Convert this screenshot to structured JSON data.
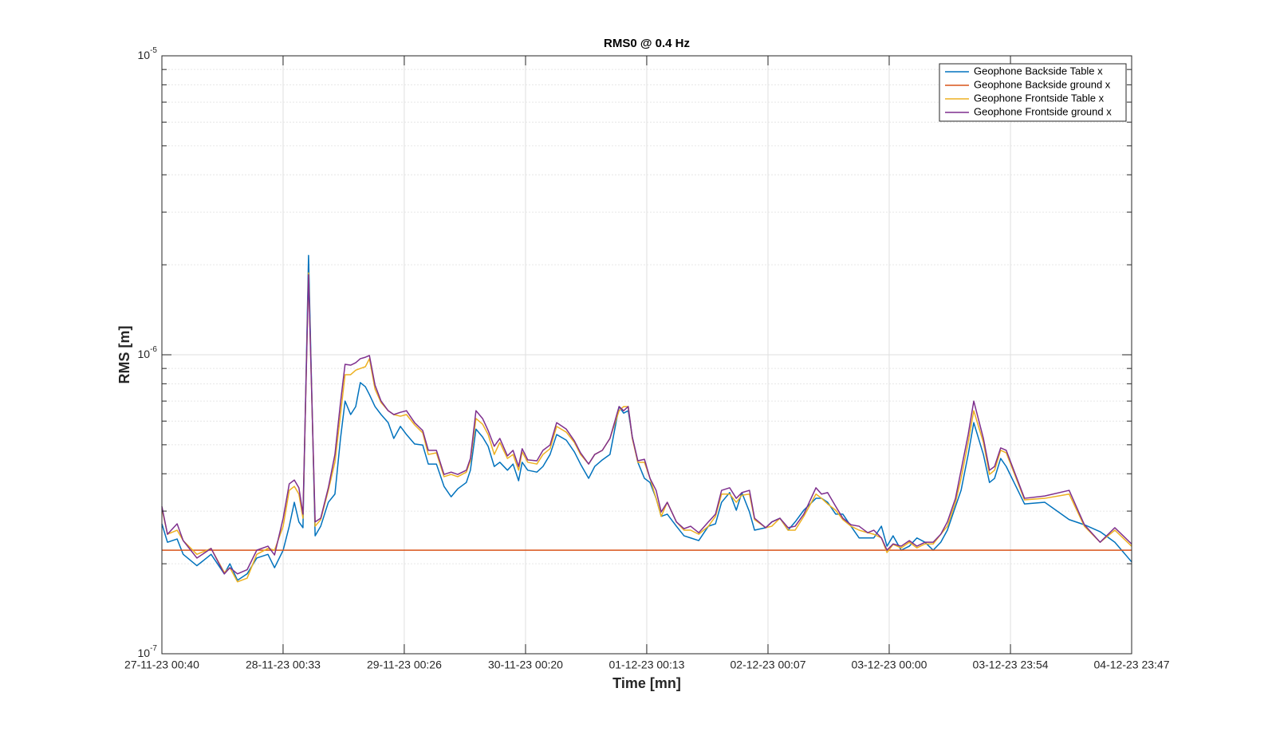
{
  "chart_data": {
    "type": "line",
    "title": "RMS0 @ 0.4 Hz",
    "x_label": "Time [mn]",
    "y_label": "RMS [m]",
    "log_y": true,
    "grid": true,
    "minor_grid": true,
    "legend": "top-right",
    "xlim": [
      0,
      191.117
    ],
    "xticks": [
      {
        "value": 0,
        "label": "27-11-23 00:40"
      },
      {
        "value": 23.883,
        "label": "28-11-23 00:33"
      },
      {
        "value": 47.767,
        "label": "29-11-23 00:26"
      },
      {
        "value": 71.667,
        "label": "30-11-23 00:20"
      },
      {
        "value": 95.55,
        "label": "01-12-23 00:13"
      },
      {
        "value": 119.45,
        "label": "02-12-23 00:07"
      },
      {
        "value": 143.333,
        "label": "03-12-23 00:00"
      },
      {
        "value": 167.233,
        "label": "03-12-23 23:54"
      },
      {
        "value": 191.117,
        "label": "04-12-23 23:47"
      }
    ],
    "ylim": [
      1e-07,
      1e-05
    ],
    "yticks": [
      {
        "value": 1e-07,
        "label": "10^-7"
      },
      {
        "value": 1e-06,
        "label": "10^-6"
      },
      {
        "value": 1e-05,
        "label": "10^-5"
      }
    ],
    "x": [
      0,
      1.1,
      3.0,
      4.2,
      6.9,
      9.7,
      12.3,
      13.4,
      14.9,
      16.8,
      18.7,
      20.9,
      22.2,
      23.9,
      25.1,
      26.1,
      27.0,
      27.8,
      28.9,
      30.2,
      31.3,
      32.8,
      34.1,
      35.2,
      36.1,
      37.2,
      38.2,
      39.1,
      40.1,
      40.9,
      42.0,
      43.2,
      44.6,
      45.7,
      47.0,
      48.2,
      49.8,
      51.4,
      52.5,
      54.1,
      55.6,
      57.0,
      58.3,
      60.0,
      60.8,
      61.9,
      63.2,
      64.3,
      65.5,
      66.6,
      68.1,
      69.2,
      70.3,
      71.0,
      72.1,
      73.9,
      75.1,
      76.5,
      77.8,
      79.7,
      81.3,
      82.5,
      84.1,
      85.3,
      86.8,
      88.3,
      90.1,
      91.0,
      91.9,
      92.7,
      93.8,
      95.1,
      96.2,
      97.4,
      98.4,
      99.6,
      101.4,
      102.9,
      104.2,
      105.8,
      107.7,
      109.1,
      110.3,
      111.9,
      113.2,
      114.3,
      115.8,
      116.8,
      119.0,
      120.2,
      121.8,
      123.4,
      124.8,
      126.5,
      128.9,
      130.0,
      131.2,
      132.8,
      134.2,
      135.8,
      137.4,
      139.1,
      140.3,
      141.8,
      142.9,
      144.1,
      145.7,
      147.3,
      148.8,
      150.4,
      152.0,
      153.5,
      154.8,
      156.4,
      157.5,
      158.9,
      160.0,
      161.9,
      163.1,
      164.1,
      165.3,
      166.4,
      170.0,
      174.0,
      178.8,
      181.8,
      184.9,
      187.8,
      191.1
    ],
    "series": [
      {
        "name": "Geophone Backside Table x",
        "color": "#0072BD",
        "values": [
          2.72e-07,
          2.36e-07,
          2.42e-07,
          2.15e-07,
          1.97e-07,
          2.15e-07,
          1.85e-07,
          2e-07,
          1.76e-07,
          1.85e-07,
          2.09e-07,
          2.15e-07,
          1.94e-07,
          2.22e-07,
          2.67e-07,
          3.21e-07,
          2.76e-07,
          2.64e-07,
          2.15e-06,
          2.48e-07,
          2.67e-07,
          3.21e-07,
          3.42e-07,
          5.25e-07,
          7e-07,
          6.31e-07,
          6.71e-07,
          8.07e-07,
          7.82e-07,
          7.36e-07,
          6.71e-07,
          6.31e-07,
          5.93e-07,
          5.25e-07,
          5.76e-07,
          5.41e-07,
          5.03e-07,
          4.99e-07,
          4.31e-07,
          4.31e-07,
          3.63e-07,
          3.35e-07,
          3.56e-07,
          3.74e-07,
          4.11e-07,
          5.64e-07,
          5.31e-07,
          4.94e-07,
          4.23e-07,
          4.37e-07,
          4.11e-07,
          4.31e-07,
          3.79e-07,
          4.37e-07,
          4.11e-07,
          4.05e-07,
          4.23e-07,
          4.64e-07,
          5.41e-07,
          5.18e-07,
          4.73e-07,
          4.31e-07,
          3.86e-07,
          4.23e-07,
          4.45e-07,
          4.64e-07,
          6.71e-07,
          6.38e-07,
          6.5e-07,
          5.31e-07,
          4.37e-07,
          3.86e-07,
          3.74e-07,
          3.31e-07,
          2.88e-07,
          2.93e-07,
          2.67e-07,
          2.48e-07,
          2.44e-07,
          2.39e-07,
          2.67e-07,
          2.72e-07,
          3.21e-07,
          3.46e-07,
          3.02e-07,
          3.46e-07,
          2.98e-07,
          2.59e-07,
          2.64e-07,
          2.76e-07,
          2.84e-07,
          2.59e-07,
          2.76e-07,
          3.02e-07,
          3.31e-07,
          3.31e-07,
          3.21e-07,
          2.93e-07,
          2.93e-07,
          2.67e-07,
          2.44e-07,
          2.44e-07,
          2.44e-07,
          2.67e-07,
          2.29e-07,
          2.48e-07,
          2.22e-07,
          2.29e-07,
          2.44e-07,
          2.36e-07,
          2.22e-07,
          2.36e-07,
          2.59e-07,
          3.11e-07,
          3.52e-07,
          4.64e-07,
          5.93e-07,
          4.64e-07,
          3.74e-07,
          3.86e-07,
          4.5e-07,
          4.23e-07,
          3.17e-07,
          3.21e-07,
          2.81e-07,
          2.7e-07,
          2.56e-07,
          2.36e-07,
          2.03e-07
        ]
      },
      {
        "name": "Geophone Backside ground x",
        "color": "#D95319",
        "values": [
          2.22e-07,
          2.22e-07,
          2.22e-07,
          2.22e-07,
          2.22e-07,
          2.22e-07,
          2.22e-07,
          2.22e-07,
          2.22e-07,
          2.22e-07,
          2.22e-07,
          2.22e-07,
          2.22e-07,
          2.22e-07,
          2.22e-07,
          2.22e-07,
          2.22e-07,
          2.22e-07,
          2.22e-07,
          2.22e-07,
          2.22e-07,
          2.22e-07,
          2.22e-07,
          2.22e-07,
          2.22e-07,
          2.22e-07,
          2.22e-07,
          2.22e-07,
          2.22e-07,
          2.22e-07,
          2.22e-07,
          2.22e-07,
          2.22e-07,
          2.22e-07,
          2.22e-07,
          2.22e-07,
          2.22e-07,
          2.22e-07,
          2.22e-07,
          2.22e-07,
          2.22e-07,
          2.22e-07,
          2.22e-07,
          2.22e-07,
          2.22e-07,
          2.22e-07,
          2.22e-07,
          2.22e-07,
          2.22e-07,
          2.22e-07,
          2.22e-07,
          2.22e-07,
          2.22e-07,
          2.22e-07,
          2.22e-07,
          2.22e-07,
          2.22e-07,
          2.22e-07,
          2.22e-07,
          2.22e-07,
          2.22e-07,
          2.22e-07,
          2.22e-07,
          2.22e-07,
          2.22e-07,
          2.22e-07,
          2.22e-07,
          2.22e-07,
          2.22e-07,
          2.22e-07,
          2.22e-07,
          2.22e-07,
          2.22e-07,
          2.22e-07,
          2.22e-07,
          2.22e-07,
          2.22e-07,
          2.22e-07,
          2.22e-07,
          2.22e-07,
          2.22e-07,
          2.22e-07,
          2.22e-07,
          2.22e-07,
          2.22e-07,
          2.22e-07,
          2.22e-07,
          2.22e-07,
          2.22e-07,
          2.22e-07,
          2.22e-07,
          2.22e-07,
          2.22e-07,
          2.22e-07,
          2.22e-07,
          2.22e-07,
          2.22e-07,
          2.22e-07,
          2.22e-07,
          2.22e-07,
          2.22e-07,
          2.22e-07,
          2.22e-07,
          2.22e-07,
          2.22e-07,
          2.22e-07,
          2.22e-07,
          2.22e-07,
          2.22e-07,
          2.22e-07,
          2.22e-07,
          2.22e-07,
          2.22e-07,
          2.22e-07,
          2.22e-07,
          2.22e-07,
          2.22e-07,
          2.22e-07,
          2.22e-07,
          2.22e-07,
          2.22e-07,
          2.22e-07,
          2.22e-07,
          2.22e-07,
          2.22e-07,
          2.22e-07,
          2.22e-07,
          2.22e-07,
          2.22e-07
        ]
      },
      {
        "name": "Geophone Frontside Table x",
        "color": "#EDB120",
        "values": [
          3.06e-07,
          2.51e-07,
          2.59e-07,
          2.39e-07,
          2.15e-07,
          2.25e-07,
          1.87e-07,
          1.94e-07,
          1.74e-07,
          1.79e-07,
          2.15e-07,
          2.25e-07,
          2.22e-07,
          2.67e-07,
          3.52e-07,
          3.63e-07,
          3.42e-07,
          2.84e-07,
          1.88e-06,
          2.67e-07,
          2.81e-07,
          3.52e-07,
          4.37e-07,
          6.31e-07,
          8.58e-07,
          8.58e-07,
          8.88e-07,
          9e-07,
          9.12e-07,
          9.7e-07,
          7.68e-07,
          6.92e-07,
          6.5e-07,
          6.31e-07,
          6.23e-07,
          6.31e-07,
          5.83e-07,
          5.48e-07,
          4.64e-07,
          4.7e-07,
          3.91e-07,
          3.98e-07,
          3.91e-07,
          4.05e-07,
          4.42e-07,
          6.12e-07,
          5.86e-07,
          5.41e-07,
          4.64e-07,
          5.09e-07,
          4.5e-07,
          4.64e-07,
          4.11e-07,
          4.73e-07,
          4.37e-07,
          4.31e-07,
          4.64e-07,
          4.85e-07,
          5.76e-07,
          5.51e-07,
          5.09e-07,
          4.64e-07,
          4.31e-07,
          4.64e-07,
          4.79e-07,
          5.25e-07,
          6.5e-07,
          6.71e-07,
          6.71e-07,
          5.25e-07,
          4.37e-07,
          4.37e-07,
          3.86e-07,
          3.31e-07,
          2.88e-07,
          3.21e-07,
          2.76e-07,
          2.59e-07,
          2.59e-07,
          2.51e-07,
          2.67e-07,
          2.88e-07,
          3.42e-07,
          3.42e-07,
          3.21e-07,
          3.39e-07,
          3.42e-07,
          2.81e-07,
          2.64e-07,
          2.67e-07,
          2.84e-07,
          2.59e-07,
          2.59e-07,
          2.88e-07,
          3.42e-07,
          3.31e-07,
          3.17e-07,
          3.02e-07,
          2.81e-07,
          2.67e-07,
          2.59e-07,
          2.54e-07,
          2.51e-07,
          2.44e-07,
          2.18e-07,
          2.32e-07,
          2.26e-07,
          2.36e-07,
          2.26e-07,
          2.33e-07,
          2.33e-07,
          2.51e-07,
          2.67e-07,
          3.21e-07,
          3.86e-07,
          5.09e-07,
          6.5e-07,
          5.09e-07,
          3.98e-07,
          4.11e-07,
          4.79e-07,
          4.7e-07,
          3.27e-07,
          3.31e-07,
          3.42e-07,
          2.67e-07,
          2.36e-07,
          2.59e-07,
          2.29e-07
        ]
      },
      {
        "name": "Geophone Frontside ground x",
        "color": "#7E2F8E",
        "values": [
          3.11e-07,
          2.51e-07,
          2.72e-07,
          2.39e-07,
          2.09e-07,
          2.25e-07,
          1.85e-07,
          1.94e-07,
          1.85e-07,
          1.91e-07,
          2.22e-07,
          2.29e-07,
          2.14e-07,
          2.84e-07,
          3.7e-07,
          3.81e-07,
          3.59e-07,
          2.93e-07,
          1.85e-06,
          2.76e-07,
          2.84e-07,
          3.59e-07,
          4.64e-07,
          6.92e-07,
          9.29e-07,
          9.23e-07,
          9.41e-07,
          9.7e-07,
          9.81e-07,
          9.94e-07,
          7.92e-07,
          7e-07,
          6.5e-07,
          6.31e-07,
          6.42e-07,
          6.5e-07,
          5.93e-07,
          5.58e-07,
          4.79e-07,
          4.79e-07,
          3.98e-07,
          4.05e-07,
          3.98e-07,
          4.11e-07,
          4.5e-07,
          6.5e-07,
          6.12e-07,
          5.58e-07,
          4.94e-07,
          5.25e-07,
          4.59e-07,
          4.79e-07,
          4.23e-07,
          4.85e-07,
          4.45e-07,
          4.42e-07,
          4.79e-07,
          4.99e-07,
          5.93e-07,
          5.64e-07,
          5.15e-07,
          4.7e-07,
          4.31e-07,
          4.64e-07,
          4.79e-07,
          5.25e-07,
          6.71e-07,
          6.5e-07,
          6.71e-07,
          5.31e-07,
          4.42e-07,
          4.47e-07,
          3.86e-07,
          3.52e-07,
          2.98e-07,
          3.21e-07,
          2.76e-07,
          2.62e-07,
          2.67e-07,
          2.54e-07,
          2.76e-07,
          2.93e-07,
          3.52e-07,
          3.59e-07,
          3.31e-07,
          3.46e-07,
          3.52e-07,
          2.84e-07,
          2.64e-07,
          2.76e-07,
          2.84e-07,
          2.64e-07,
          2.67e-07,
          2.93e-07,
          3.59e-07,
          3.42e-07,
          3.46e-07,
          3.11e-07,
          2.84e-07,
          2.7e-07,
          2.67e-07,
          2.54e-07,
          2.59e-07,
          2.44e-07,
          2.22e-07,
          2.33e-07,
          2.29e-07,
          2.39e-07,
          2.29e-07,
          2.36e-07,
          2.36e-07,
          2.51e-07,
          2.76e-07,
          3.31e-07,
          4.11e-07,
          5.41e-07,
          7e-07,
          5.25e-07,
          4.11e-07,
          4.23e-07,
          4.88e-07,
          4.79e-07,
          3.31e-07,
          3.37e-07,
          3.52e-07,
          2.7e-07,
          2.36e-07,
          2.64e-07,
          2.33e-07
        ]
      }
    ]
  }
}
